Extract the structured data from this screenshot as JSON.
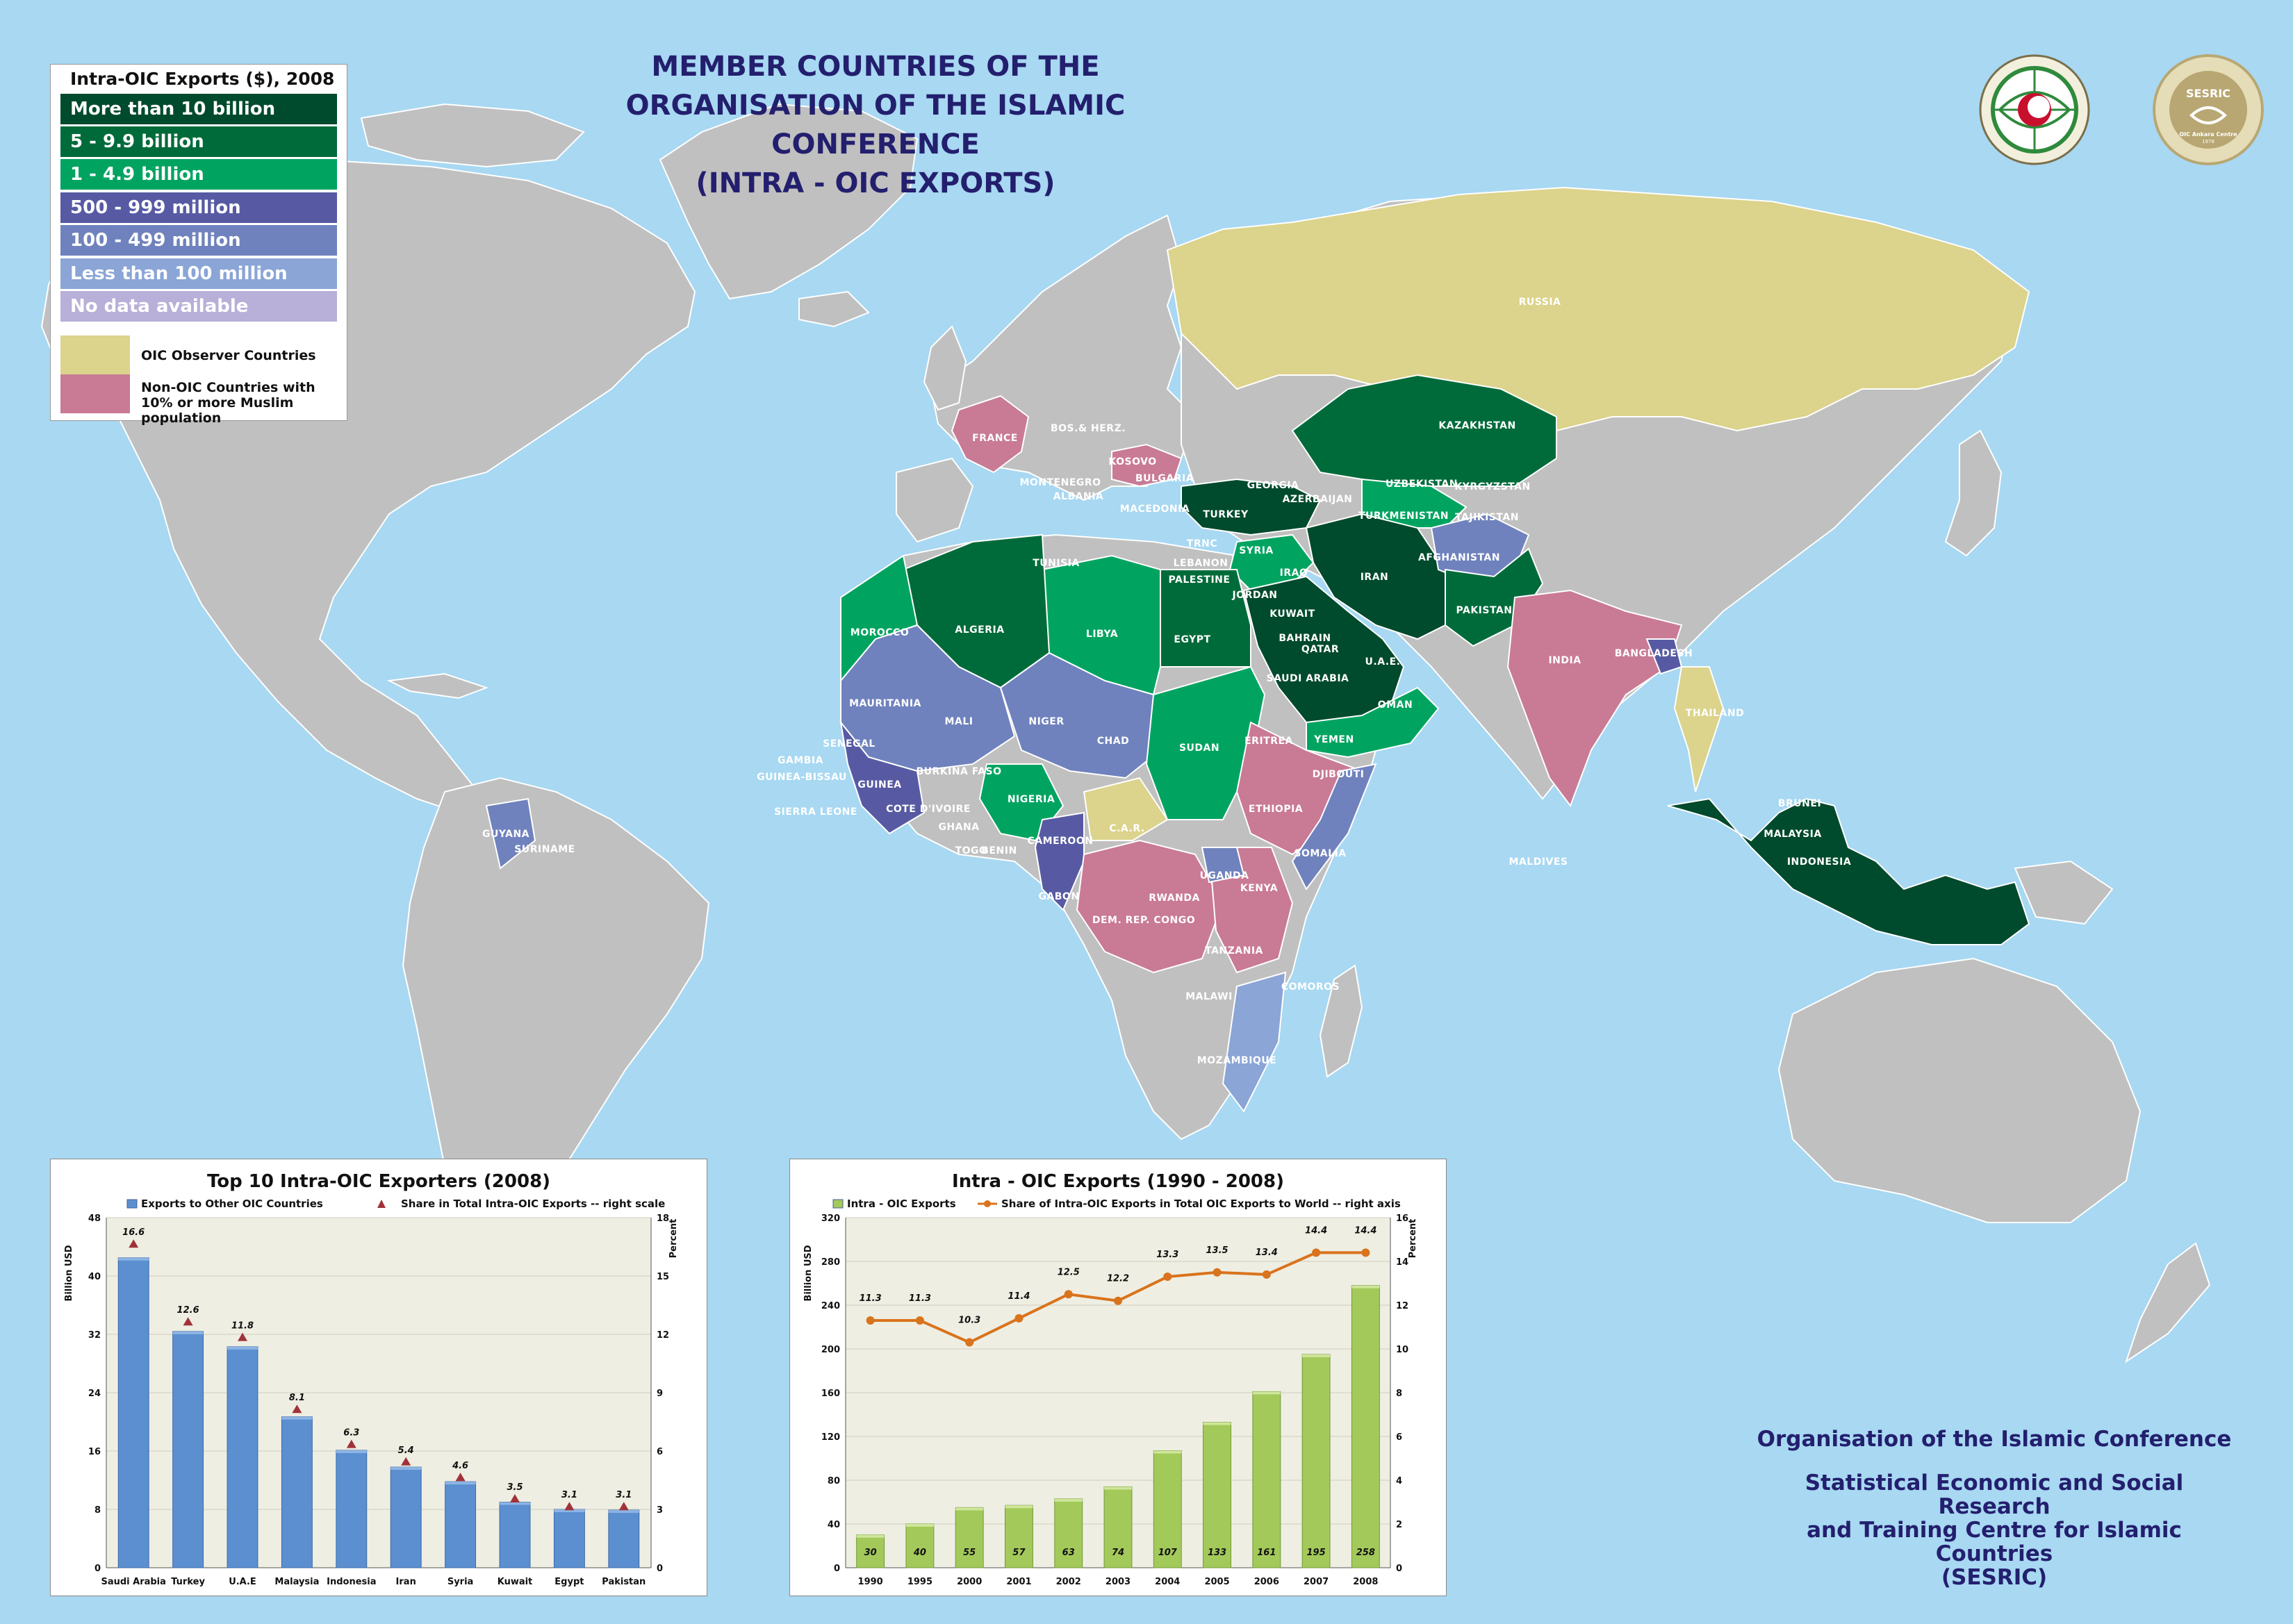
{
  "title": {
    "line1": "MEMBER COUNTRIES OF THE ORGANISATION OF THE ISLAMIC CONFERENCE",
    "line2": "(INTRA - OIC  EXPORTS)"
  },
  "logos": {
    "oic": {
      "icon": "oic-emblem-icon",
      "colors": {
        "ring": "#2f8a3c",
        "center": "#c8102e"
      }
    },
    "sesric": {
      "icon": "sesric-emblem-icon",
      "label": "SESRIC",
      "subtitle": "OIC Ankara Centre",
      "year": "1978",
      "colors": {
        "ring": "#b8a772"
      }
    }
  },
  "legend": {
    "title": "Intra-OIC Exports ($), 2008",
    "classes": [
      {
        "label": "More than 10 billion",
        "color": "#004a2d"
      },
      {
        "label": "5 - 9.9 billion",
        "color": "#006b3a"
      },
      {
        "label": "1 - 4.9 billion",
        "color": "#00a460"
      },
      {
        "label": "500 - 999 million",
        "color": "#575aa3"
      },
      {
        "label": "100 - 499 million",
        "color": "#6f82bd"
      },
      {
        "label": "Less than 100 million",
        "color": "#8aa5d6"
      },
      {
        "label": "No data available",
        "color": "#b8b0d8"
      }
    ],
    "extra": [
      {
        "label": "OIC Observer Countries",
        "color": "#dcd38c"
      },
      {
        "label": "Non-OIC Countries with 10% or more Muslim population",
        "color": "#c97a95"
      }
    ]
  },
  "map": {
    "colors": {
      "ocean": "#a8d8f2",
      "land": "#c0c0c0",
      "border": "#ffffff"
    },
    "country_labels": [
      "RUSSIA",
      "KAZAKHSTAN",
      "UZBEKISTAN",
      "KYRGYZSTAN",
      "TURKMENISTAN",
      "TAJIKISTAN",
      "GEORGIA",
      "AZERBAIJAN",
      "TURKEY",
      "FRANCE",
      "BOS.& HERZ.",
      "KOSOVO",
      "BULGARIA",
      "MONTENEGRO",
      "ALBANIA",
      "MACEDONIA",
      "TUNISIA",
      "LEBANON",
      "PALESTINE",
      "SYRIA",
      "IRAQ",
      "IRAN",
      "AFGHANISTAN",
      "PAKISTAN",
      "JORDAN",
      "KUWAIT",
      "BAHRAIN",
      "QATAR",
      "U.A.E.",
      "SAUDI ARABIA",
      "OMAN",
      "YEMEN",
      "EGYPT",
      "LIBYA",
      "ALGERIA",
      "MOROCCO",
      "MAURITANIA",
      "MALI",
      "NIGER",
      "CHAD",
      "SUDAN",
      "ERITREA",
      "DJIBOUTI",
      "ETHIOPIA",
      "SOMALIA",
      "SENEGAL",
      "GAMBIA",
      "GUINEA-BISSAU",
      "GUINEA",
      "SIERRA LEONE",
      "COTE D'IVOIRE",
      "GHANA",
      "TOGO",
      "BENIN",
      "BURKINA FASO",
      "NIGERIA",
      "CAMEROON",
      "C.A.R.",
      "GABON",
      "UGANDA",
      "KENYA",
      "RWANDA",
      "DEM. REP. CONGO",
      "TANZANIA",
      "COMOROS",
      "MALAWI",
      "MOZAMBIQUE",
      "INDIA",
      "BANGLADESH",
      "THAILAND",
      "MALDIVES",
      "BRUNEI",
      "MALAYSIA",
      "INDONESIA",
      "GUYANA",
      "SURINAME",
      "TRNC"
    ]
  },
  "chart_data": [
    {
      "type": "bar",
      "title": "Top   10   Intra-OIC  Exporters (2008)",
      "legend": [
        "Exports  to  Other  OIC Countries",
        "Share  in  Total  Intra-OIC   Exports -- right scale"
      ],
      "ylabel": "Billion   USD",
      "y2label": "Percent",
      "categories": [
        "Saudi Arabia",
        "Turkey",
        "U.A.E",
        "Malaysia",
        "Indonesia",
        "Iran",
        "Syria",
        "Kuwait",
        "Egypt",
        "Pakistan"
      ],
      "series": [
        {
          "name": "Exports  to  Other  OIC Countries",
          "axis": "left",
          "values": [
            42.5,
            32.4,
            30.3,
            20.7,
            16.1,
            13.8,
            11.8,
            9.0,
            8.0,
            7.9
          ]
        },
        {
          "name": "Share  in  Total  Intra-OIC   Exports -- right scale",
          "axis": "right",
          "values": [
            16.6,
            12.6,
            11.8,
            8.1,
            6.3,
            5.4,
            4.6,
            3.5,
            3.1,
            3.1
          ]
        }
      ],
      "yticks": [
        "0",
        "8",
        "16",
        "24",
        "32",
        "40",
        "48"
      ],
      "y2ticks": [
        "0",
        "3",
        "6",
        "9",
        "12",
        "15",
        "18"
      ],
      "ylim": [
        0,
        48
      ],
      "y2lim": [
        0,
        18
      ],
      "colors": {
        "bar": "#5b8fd0",
        "marker": "#a0323a",
        "plot_bg": "#efeee2"
      }
    },
    {
      "type": "bar",
      "title": "Intra - OIC Exports (1990 - 2008)",
      "legend": [
        "Intra - OIC  Exports",
        "Share  of  Intra-OIC  Exports  in  Total  OIC  Exports  to  World -- right axis"
      ],
      "ylabel": "Billion   USD",
      "y2label": "Percent",
      "categories": [
        "1990",
        "1995",
        "2000",
        "2001",
        "2002",
        "2003",
        "2004",
        "2005",
        "2006",
        "2007",
        "2008"
      ],
      "series": [
        {
          "name": "Intra - OIC  Exports",
          "axis": "left",
          "values": [
            30,
            40,
            55,
            57,
            63,
            74,
            107,
            133,
            161,
            195,
            258
          ]
        },
        {
          "name": "Share  of  Intra-OIC  Exports  in  Total  OIC  Exports  to  World -- right axis",
          "axis": "right",
          "type": "line",
          "values": [
            11.3,
            11.3,
            10.3,
            11.4,
            12.5,
            12.2,
            13.3,
            13.5,
            13.4,
            14.4,
            14.4
          ]
        }
      ],
      "yticks": [
        "0",
        "40",
        "80",
        "120",
        "160",
        "200",
        "240",
        "280",
        "320"
      ],
      "y2ticks": [
        "0",
        "2",
        "4",
        "6",
        "8",
        "10",
        "12",
        "14",
        "16"
      ],
      "ylim": [
        0,
        320
      ],
      "y2lim": [
        0,
        16
      ],
      "colors": {
        "bar": "#a3c95a",
        "line": "#d9731c",
        "plot_bg": "#efeee2"
      }
    }
  ],
  "footer": {
    "line1": "Organisation of the Islamic Conference",
    "line2": "Statistical Economic and Social Research",
    "line3": "and Training Centre for Islamic Countries",
    "line4": "(SESRIC)"
  }
}
